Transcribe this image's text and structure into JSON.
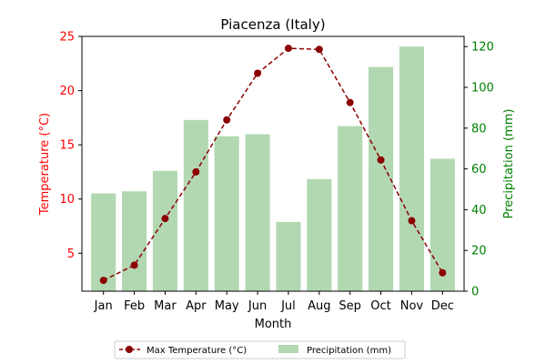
{
  "chart_data": {
    "type": "bar",
    "title": "Piacenza (Italy)",
    "xlabel": "Month",
    "ylabel_left": "Temperature (°C)",
    "ylabel_right": "Precipitation (mm)",
    "categories": [
      "Jan",
      "Feb",
      "Mar",
      "Apr",
      "May",
      "Jun",
      "Jul",
      "Aug",
      "Sep",
      "Oct",
      "Nov",
      "Dec"
    ],
    "ylim_left": [
      1.5,
      25
    ],
    "ylim_right": [
      0,
      125
    ],
    "yticks_left": [
      5,
      10,
      15,
      20,
      25
    ],
    "yticks_right": [
      0,
      20,
      40,
      60,
      80,
      100,
      120
    ],
    "grid": false,
    "legend_position": "bottom-center",
    "series": [
      {
        "name": "Max Temperature (°C)",
        "type": "line",
        "axis": "left",
        "color": "#8b0000",
        "style": "dashed",
        "marker": "circle",
        "values": [
          2.5,
          3.9,
          8.2,
          12.5,
          17.3,
          21.6,
          23.9,
          23.8,
          18.9,
          13.6,
          8.0,
          3.2
        ]
      },
      {
        "name": "Precipitation (mm)",
        "type": "bar",
        "axis": "right",
        "color": "#b2d8b2",
        "values": [
          48,
          49,
          59,
          84,
          76,
          77,
          34,
          55,
          81,
          110,
          120,
          65
        ]
      }
    ],
    "left_axis_color": "#ff0000",
    "right_axis_color": "#008000"
  }
}
